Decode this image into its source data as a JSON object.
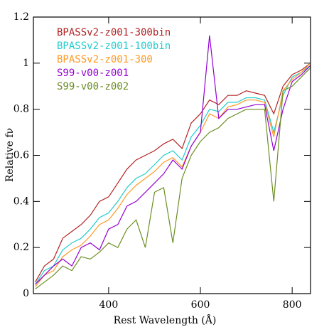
{
  "chart_data": {
    "type": "line",
    "xlabel": "Rest Wavelength (Å)",
    "ylabel": "Relative fν",
    "x": [
      240,
      260,
      280,
      300,
      320,
      340,
      360,
      380,
      400,
      420,
      440,
      460,
      480,
      500,
      520,
      540,
      560,
      580,
      600,
      620,
      640,
      660,
      680,
      700,
      720,
      740,
      760,
      780,
      800,
      820,
      840
    ],
    "series": [
      {
        "name": "BPASSv2-z001-300bin",
        "color": "#b22222",
        "values": [
          0.05,
          0.12,
          0.15,
          0.24,
          0.27,
          0.3,
          0.34,
          0.4,
          0.42,
          0.48,
          0.54,
          0.58,
          0.6,
          0.62,
          0.65,
          0.67,
          0.63,
          0.74,
          0.78,
          0.84,
          0.82,
          0.86,
          0.86,
          0.88,
          0.87,
          0.86,
          0.78,
          0.9,
          0.95,
          0.97,
          1.0
        ]
      },
      {
        "name": "BPASSv2-z001-100bin",
        "color": "#22cccc",
        "values": [
          0.04,
          0.1,
          0.12,
          0.19,
          0.22,
          0.24,
          0.28,
          0.33,
          0.35,
          0.4,
          0.46,
          0.5,
          0.52,
          0.56,
          0.6,
          0.62,
          0.58,
          0.68,
          0.73,
          0.8,
          0.79,
          0.83,
          0.83,
          0.85,
          0.85,
          0.84,
          0.7,
          0.86,
          0.94,
          0.96,
          0.99
        ]
      },
      {
        "name": "BPASSv2-z001-300",
        "color": "#ff9922",
        "values": [
          0.03,
          0.08,
          0.1,
          0.16,
          0.19,
          0.21,
          0.25,
          0.3,
          0.32,
          0.37,
          0.43,
          0.47,
          0.5,
          0.53,
          0.57,
          0.59,
          0.55,
          0.64,
          0.7,
          0.78,
          0.76,
          0.81,
          0.82,
          0.84,
          0.84,
          0.83,
          0.68,
          0.88,
          0.93,
          0.96,
          1.0
        ]
      },
      {
        "name": "S99-v00-z001",
        "color": "#9400d3",
        "values": [
          0.04,
          0.08,
          0.12,
          0.15,
          0.12,
          0.2,
          0.22,
          0.19,
          0.28,
          0.3,
          0.38,
          0.4,
          0.44,
          0.48,
          0.52,
          0.58,
          0.54,
          0.64,
          0.7,
          1.12,
          0.76,
          0.8,
          0.8,
          0.81,
          0.82,
          0.82,
          0.62,
          0.8,
          0.92,
          0.95,
          0.99
        ]
      },
      {
        "name": "S99-v00-z002",
        "color": "#6b8e23",
        "values": [
          0.02,
          0.05,
          0.08,
          0.12,
          0.1,
          0.16,
          0.15,
          0.18,
          0.22,
          0.2,
          0.28,
          0.32,
          0.2,
          0.44,
          0.46,
          0.22,
          0.5,
          0.6,
          0.66,
          0.7,
          0.72,
          0.76,
          0.78,
          0.8,
          0.8,
          0.8,
          0.4,
          0.88,
          0.9,
          0.94,
          0.98
        ]
      }
    ],
    "xlim": [
      236,
      840
    ],
    "xticks": [
      400,
      600,
      800
    ],
    "ylim": [
      0,
      1.2
    ],
    "yticks": [
      0,
      0.2,
      0.4,
      0.6,
      0.8,
      1,
      1.2
    ]
  }
}
